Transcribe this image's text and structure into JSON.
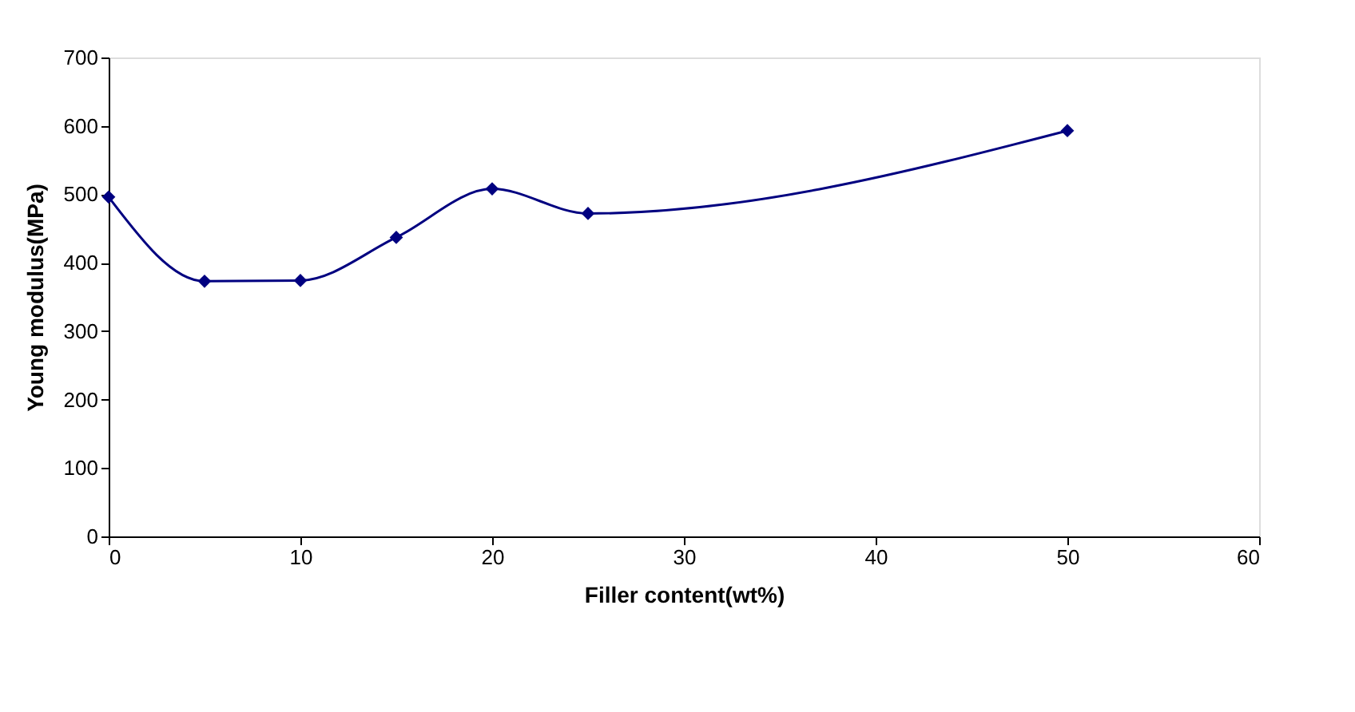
{
  "chart_data": {
    "type": "line",
    "xlabel": "Filler content(wt%)",
    "ylabel": "Young modulus(MPa)",
    "x": [
      0,
      5,
      10,
      15,
      20,
      25,
      50
    ],
    "series": [
      {
        "color": "#000080",
        "values": [
          496,
          373,
          374,
          437,
          508,
          472,
          593
        ]
      }
    ],
    "xlim": [
      0,
      60
    ],
    "xticks": [
      0,
      10,
      20,
      30,
      40,
      50,
      60
    ],
    "ylim": [
      0,
      700
    ],
    "yticks": [
      0,
      100,
      200,
      300,
      400,
      500,
      600,
      700
    ],
    "grid": false,
    "marker": "diamond",
    "line_style": "solid"
  }
}
